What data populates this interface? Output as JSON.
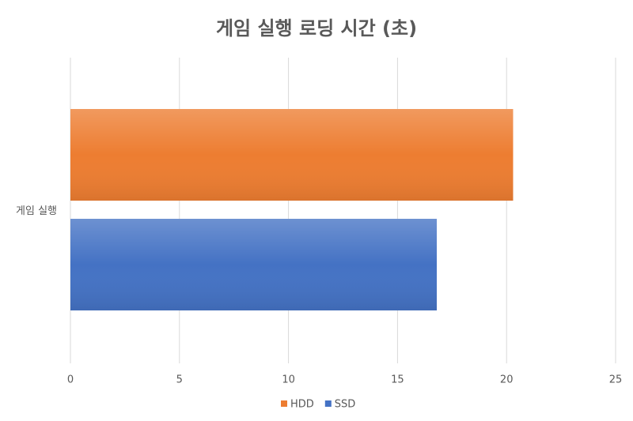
{
  "chart_data": {
    "type": "hbar",
    "title": "게임 실행 로딩 시간 (초)",
    "categories": [
      "게임 실행"
    ],
    "series": [
      {
        "name": "HDD",
        "color": "#ed7d31",
        "values": [
          20.3
        ]
      },
      {
        "name": "SSD",
        "color": "#4472c4",
        "values": [
          16.8
        ]
      }
    ],
    "xlim": [
      0,
      25
    ],
    "xticks": [
      0,
      5,
      10,
      15,
      20,
      25
    ],
    "grid": true,
    "legend": "bottom"
  }
}
